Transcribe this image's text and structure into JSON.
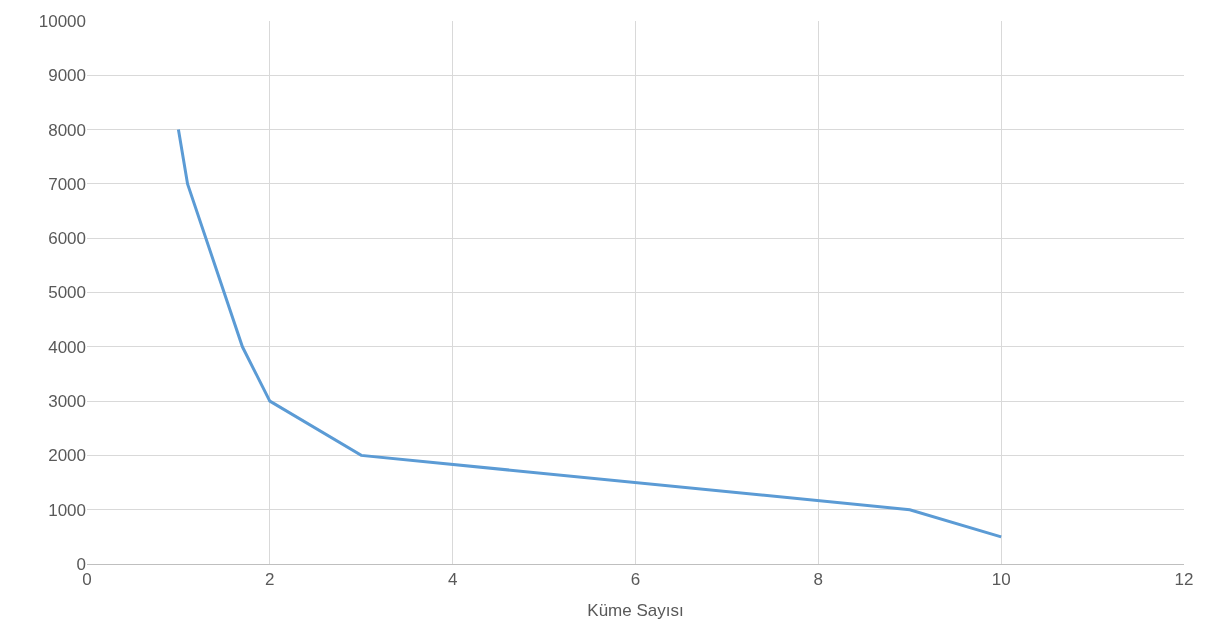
{
  "chart_data": {
    "type": "line",
    "xlabel": "Küme Sayısı",
    "x": [
      1,
      1.1,
      1.7,
      2,
      3,
      9,
      10
    ],
    "series": [
      {
        "color": "#5b9bd5",
        "values": [
          8000,
          7000,
          4000,
          3000,
          2000,
          1000,
          500
        ]
      }
    ],
    "xlim": [
      0,
      12
    ],
    "xticks": [
      0,
      2,
      4,
      6,
      8,
      10,
      12
    ],
    "ylim": [
      0,
      10000
    ],
    "yticks": [
      0,
      1000,
      2000,
      3000,
      4000,
      5000,
      6000,
      7000,
      8000,
      9000,
      10000
    ],
    "grid": true,
    "legend": false,
    "marker": "none",
    "line_style": "solid"
  }
}
